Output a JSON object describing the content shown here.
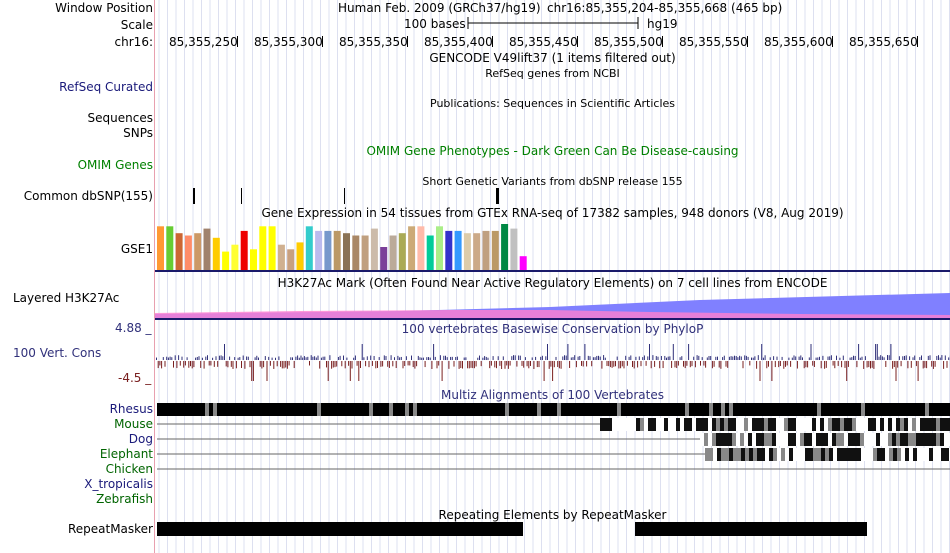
{
  "header": {
    "window_position_label": "Window Position",
    "scale_label": "Scale",
    "chrom_label": "chr16:",
    "assembly": "Human Feb. 2009 (GRCh37/hg19)",
    "position": "chr16:85,355,204-85,355,668 (465 bp)",
    "scale_text": "100 bases",
    "db": "hg19",
    "ruler_ticks": [
      "85,355,250",
      "85,355,300",
      "85,355,350",
      "85,355,400",
      "85,355,450",
      "85,355,500",
      "85,355,550",
      "85,355,600",
      "85,355,650"
    ]
  },
  "tracks": {
    "gencode": "GENCODE V49lift37 (1 items filtered out)",
    "refseq_center": "RefSeq genes from NCBI",
    "refseq_label": "RefSeq Curated",
    "publications": "Publications: Sequences in Scientific Articles",
    "sequences_label": "Sequences",
    "snps_label": "SNPs",
    "omim_label": "OMIM Genes",
    "omim_center": "OMIM Gene Phenotypes - Dark Green Can Be Disease-causing",
    "dbsnp_center": "Short Genetic Variants from dbSNP release 155",
    "dbsnp_label": "Common dbSNP(155)",
    "gtex_center": "Gene Expression in 54 tissues from GTEx RNA-seq of 17382 samples, 948 donors (V8, Aug 2019)",
    "gtex_label": "GSE1",
    "h3k27_center": "H3K27Ac Mark (Often Found Near Active Regulatory Elements) on 7 cell lines from ENCODE",
    "h3k27_label": "Layered H3K27Ac",
    "cons_center": "100 vertebrates Basewise Conservation by PhyloP",
    "cons_label": "100 Vert. Cons",
    "cons_max": "4.88 _",
    "cons_min": "-4.5 _",
    "multiz_center": "Multiz Alignments of 100 Vertebrates",
    "species": [
      "Rhesus",
      "Mouse",
      "Dog",
      "Elephant",
      "Chicken",
      "X_tropicalis",
      "Zebrafish"
    ],
    "repeat_center": "Repeating Elements by RepeatMasker",
    "repeat_label": "RepeatMasker"
  },
  "colors": {
    "label_blue": "#1a1a7a",
    "omim_green": "#008000",
    "cons_blue": "#30307a",
    "cons_red": "#7a2020",
    "species_green": "#006400",
    "h3k27_pink": "#ff69b4",
    "h3k27_blue": "#7070ff"
  },
  "gtex_bar_colors": [
    "#ff9933",
    "#66cc33",
    "#cc6633",
    "#ff8c69",
    "#cc9966",
    "#a0826d",
    "#ffcc00",
    "#ffff00",
    "#ffff33",
    "#ee0000",
    "#ffff00",
    "#ffff00",
    "#ffff00",
    "#d0b090",
    "#c8a080",
    "#ffcc00",
    "#33cccc",
    "#bbbbee",
    "#7799cc",
    "#bb9966",
    "#8b7355",
    "#aa8866",
    "#c0a080",
    "#ccbbaa",
    "#7b3f99",
    "#bbaa99",
    "#aaaa55",
    "#ccaa77",
    "#ffbbaa",
    "#00cc99",
    "#aaee88",
    "#3333cc",
    "#3399ff",
    "#ddccaa",
    "#ccaa88",
    "#c0a080",
    "#bb9966",
    "#008844",
    "#c0c0c0",
    "#ff00ff"
  ],
  "gtex_bar_values": [
    0.95,
    0.95,
    0.8,
    0.75,
    0.8,
    0.9,
    0.7,
    0.4,
    0.55,
    0.85,
    0.45,
    0.95,
    0.95,
    0.55,
    0.45,
    0.6,
    0.95,
    0.85,
    0.85,
    0.85,
    0.8,
    0.75,
    0.75,
    0.9,
    0.5,
    0.75,
    0.8,
    0.95,
    0.95,
    0.75,
    0.95,
    0.85,
    0.85,
    0.8,
    0.8,
    0.85,
    0.85,
    1.0,
    0.9,
    0.3
  ]
}
